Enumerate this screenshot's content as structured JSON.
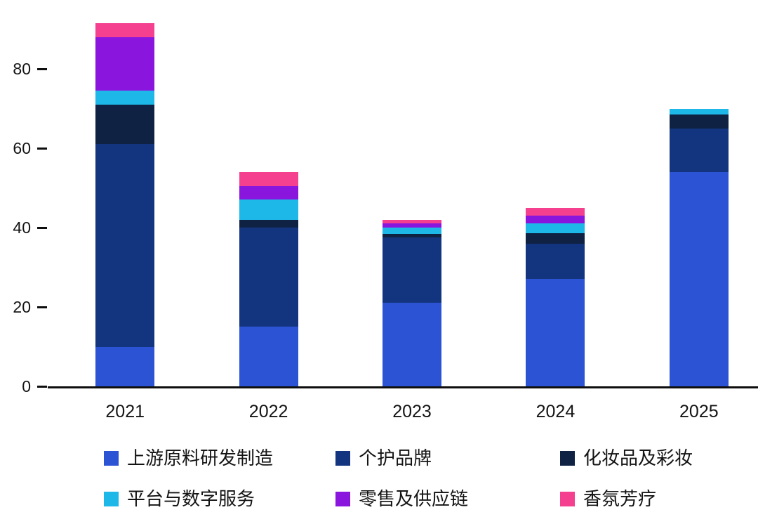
{
  "chart_data": {
    "type": "bar",
    "stacked": true,
    "title": "",
    "xlabel": "",
    "ylabel": "",
    "categories": [
      "2021",
      "2022",
      "2023",
      "2024",
      "2025"
    ],
    "series": [
      {
        "name": "上游原料研发制造",
        "color": "#2d53d5",
        "values": [
          10,
          15,
          21,
          27,
          54
        ]
      },
      {
        "name": "个护品牌",
        "color": "#13357f",
        "values": [
          51,
          25,
          16.5,
          9,
          11
        ]
      },
      {
        "name": "化妆品及彩妆",
        "color": "#0f2244",
        "values": [
          10,
          2,
          1,
          2.5,
          3.5
        ]
      },
      {
        "name": "平台与数字服务",
        "color": "#1db8e8",
        "values": [
          3.5,
          5,
          1.5,
          2.5,
          1.5
        ]
      },
      {
        "name": "零售及供应链",
        "color": "#8a16dd",
        "values": [
          13.5,
          3.5,
          1,
          2,
          0
        ]
      },
      {
        "name": "香氛芳疗",
        "color": "#f4408f",
        "values": [
          3.5,
          3.5,
          1,
          2,
          0
        ]
      }
    ],
    "totals": [
      91.5,
      54,
      42,
      45,
      70
    ],
    "ylim": [
      0,
      92
    ],
    "yticks": [
      0,
      20,
      40,
      60,
      80
    ],
    "grid": false,
    "legend_position": "bottom",
    "background_color": "#ffffff",
    "axis_color": "#0e0e0e"
  }
}
